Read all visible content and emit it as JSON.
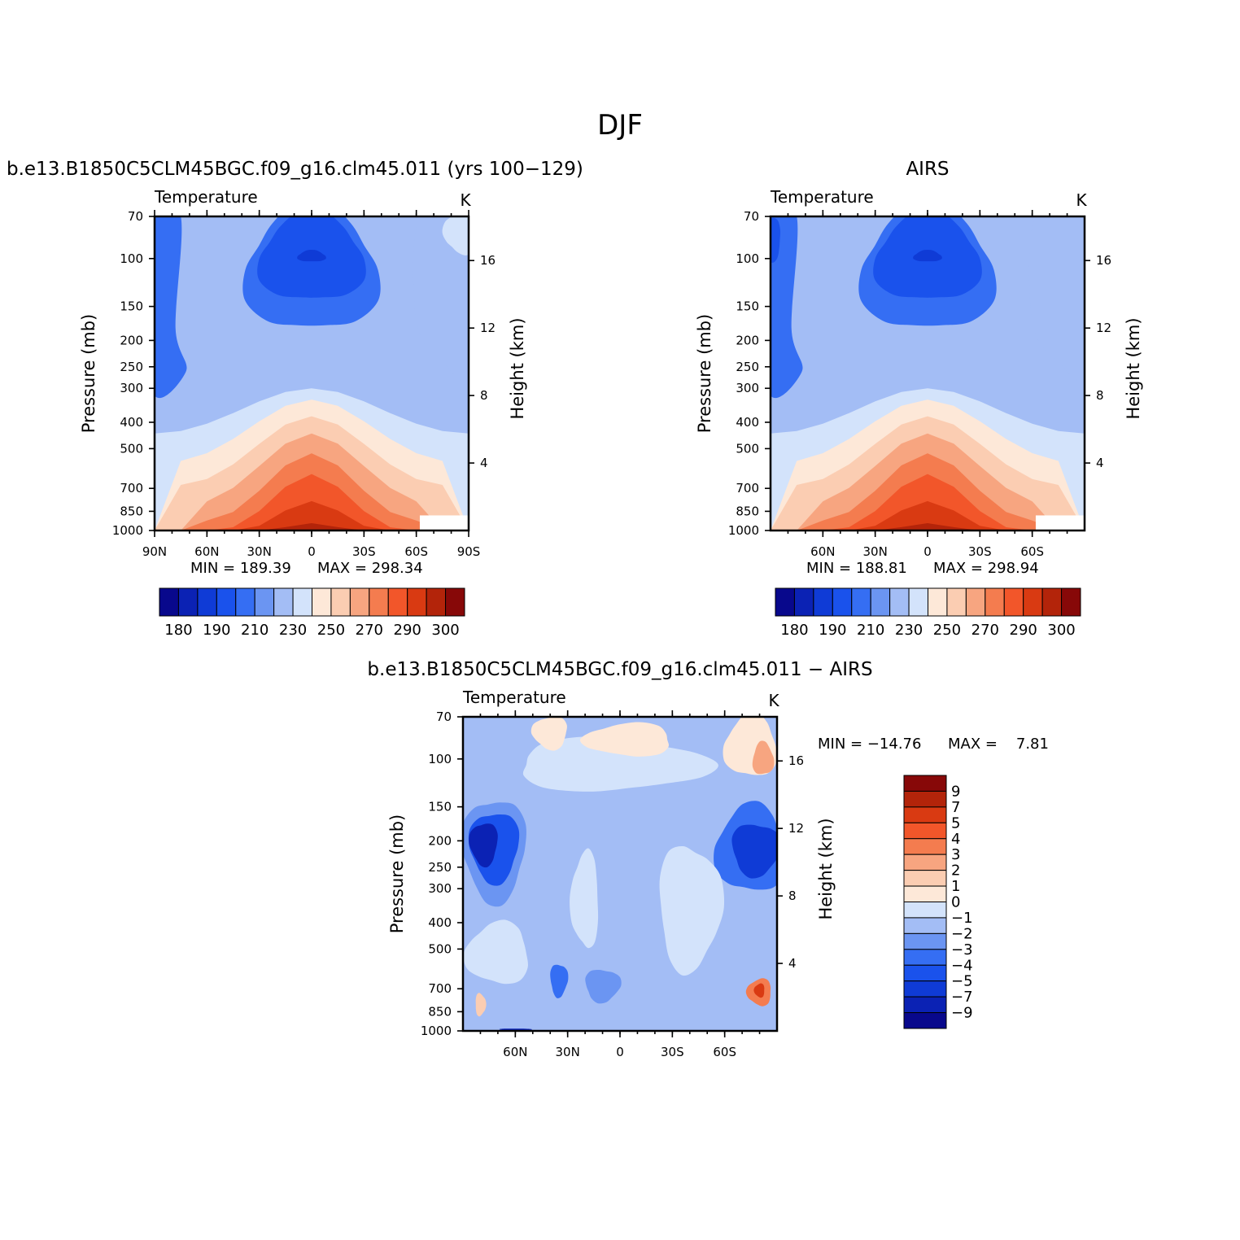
{
  "figure_title": "DJF",
  "colors": {
    "abs_levels": [
      "#08088c",
      "#0b22b4",
      "#0f3bd6",
      "#1a52ec",
      "#356ef3",
      "#6b95f2",
      "#a3bdf5",
      "#d3e3fb",
      "#fde8d8",
      "#fbcdb2",
      "#f7a580",
      "#f47c4f",
      "#f2562a",
      "#d93a12",
      "#b3240a",
      "#870808"
    ],
    "diff_levels": [
      "#08088c",
      "#0b22b4",
      "#0f3bd6",
      "#1a52ec",
      "#356ef3",
      "#6b95f2",
      "#a3bdf5",
      "#d3e3fb",
      "#fde8d8",
      "#fbcdb2",
      "#f7a580",
      "#f47c4f",
      "#f2562a",
      "#d93a12",
      "#b3240a",
      "#870808"
    ]
  },
  "chart_data": [
    {
      "type": "heatmap",
      "title": "b.e13.B1850C5CLM45BGC.f09_g16.clm45.011 (yrs 100−129)",
      "subtitle_left": "Temperature",
      "subtitle_right": "K",
      "ylabel": "Pressure (mb)",
      "ylabel_right": "Height (km)",
      "x_ticks": [
        "90N",
        "60N",
        "30N",
        "0",
        "30S",
        "60S",
        "90S"
      ],
      "x_range": [
        -90,
        90
      ],
      "y_ticks": [
        "70",
        "100",
        "150",
        "200",
        "250",
        "300",
        "400",
        "500",
        "700",
        "850",
        "1000"
      ],
      "y_range": [
        1000,
        70
      ],
      "y_scale": "log",
      "y_right_ticks": [
        "16",
        "12",
        "8",
        "4"
      ],
      "min_text": "MIN = 189.39",
      "max_text": "MAX = 298.34",
      "levels": [
        180,
        185,
        190,
        200,
        210,
        220,
        230,
        240,
        250,
        260,
        270,
        280,
        290,
        295,
        300
      ],
      "colorbar_labels": [
        "180",
        "190",
        "210",
        "230",
        "250",
        "270",
        "290",
        "300"
      ],
      "colorbar_orientation": "horizontal"
    },
    {
      "type": "heatmap",
      "title": "AIRS",
      "subtitle_left": "Temperature",
      "subtitle_right": "K",
      "ylabel": "Pressure (mb)",
      "ylabel_right": "Height (km)",
      "x_ticks": [
        "60N",
        "30N",
        "0",
        "30S",
        "60S"
      ],
      "x_range": [
        -90,
        90
      ],
      "y_ticks": [
        "70",
        "100",
        "150",
        "200",
        "250",
        "300",
        "400",
        "500",
        "700",
        "850",
        "1000"
      ],
      "y_range": [
        1000,
        70
      ],
      "y_scale": "log",
      "y_right_ticks": [
        "16",
        "12",
        "8",
        "4"
      ],
      "min_text": "MIN = 188.81",
      "max_text": "MAX = 298.94",
      "levels": [
        180,
        185,
        190,
        200,
        210,
        220,
        230,
        240,
        250,
        260,
        270,
        280,
        290,
        295,
        300
      ],
      "colorbar_labels": [
        "180",
        "190",
        "210",
        "230",
        "250",
        "270",
        "290",
        "300"
      ],
      "colorbar_orientation": "horizontal"
    },
    {
      "type": "heatmap",
      "title": "b.e13.B1850C5CLM45BGC.f09_g16.clm45.011 − AIRS",
      "subtitle_left": "Temperature",
      "subtitle_right": "K",
      "ylabel": "Pressure (mb)",
      "ylabel_right": "Height (km)",
      "x_ticks": [
        "60N",
        "30N",
        "0",
        "30S",
        "60S"
      ],
      "x_range": [
        -90,
        90
      ],
      "y_ticks": [
        "70",
        "100",
        "150",
        "200",
        "250",
        "300",
        "400",
        "500",
        "700",
        "850",
        "1000"
      ],
      "y_range": [
        1000,
        70
      ],
      "y_scale": "log",
      "y_right_ticks": [
        "16",
        "12",
        "8",
        "4"
      ],
      "min_text": "MIN = −14.76",
      "max_text": "MAX =    7.81",
      "levels": [
        -9,
        -7,
        -5,
        -4,
        -3,
        -2,
        -1,
        0,
        1,
        2,
        3,
        4,
        5,
        7,
        9
      ],
      "colorbar_labels": [
        "9",
        "7",
        "5",
        "4",
        "3",
        "2",
        "1",
        "0",
        "−1",
        "−2",
        "−3",
        "−4",
        "−5",
        "−7",
        "−9"
      ],
      "colorbar_orientation": "vertical"
    }
  ]
}
